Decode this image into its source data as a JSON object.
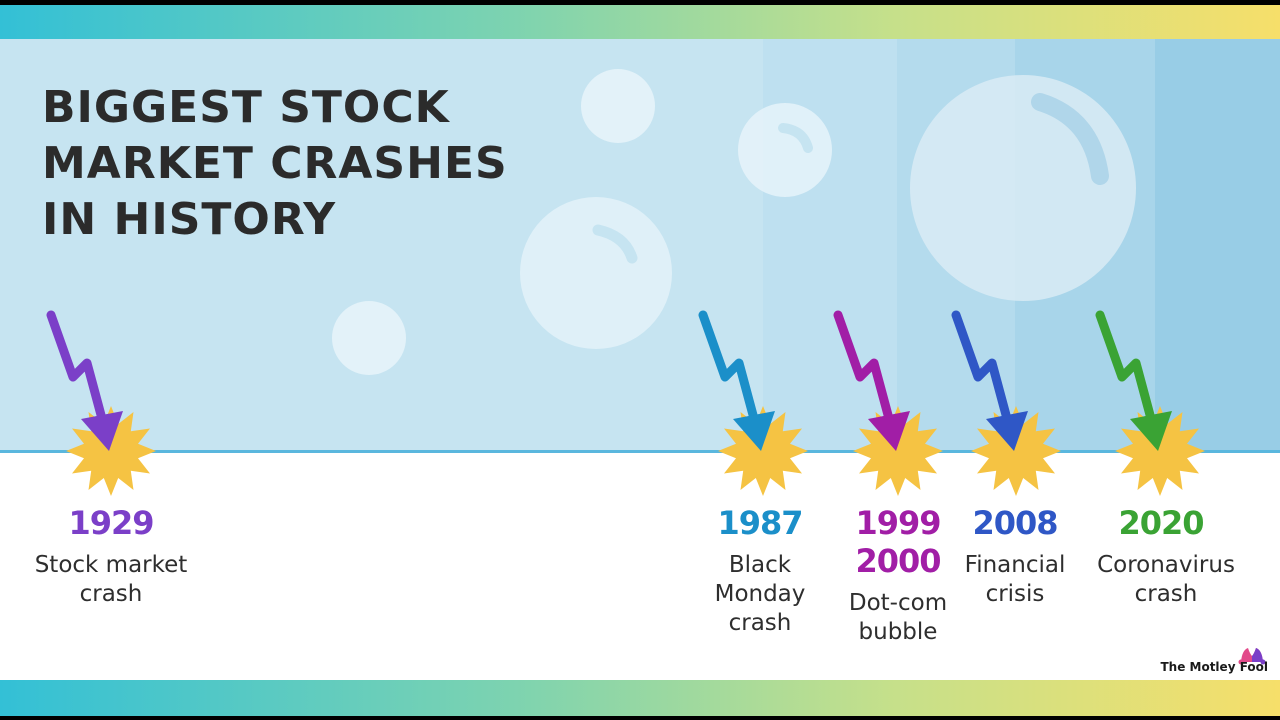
{
  "title": "BIGGEST STOCK\nMARKET CRASHES\nIN HISTORY",
  "brand": {
    "name": "The Motley Fool",
    "logo_icon": "jester-hat-icon"
  },
  "colors": {
    "sky": "#c6e4f1",
    "ground": "#ffffff",
    "burst": "#f5c343",
    "text": "#2e2e2e"
  },
  "events": [
    {
      "year": "1929",
      "label": "Stock market\ncrash",
      "color": "#7b3fc8"
    },
    {
      "year": "1987",
      "label": "Black\nMonday\ncrash",
      "color": "#1b8fc9"
    },
    {
      "year": "1999\n2000",
      "label": "Dot-com\nbubble",
      "color": "#a11ea6"
    },
    {
      "year": "2008",
      "label": "Financial\ncrisis",
      "color": "#2f57c6"
    },
    {
      "year": "2020",
      "label": "Coronavirus\ncrash",
      "color": "#3aa334"
    }
  ]
}
